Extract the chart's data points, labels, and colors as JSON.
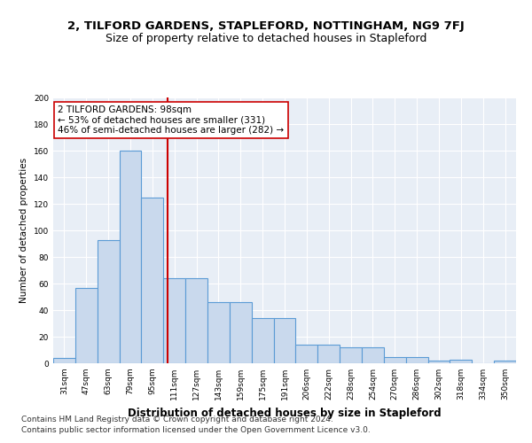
{
  "title": "2, TILFORD GARDENS, STAPLEFORD, NOTTINGHAM, NG9 7FJ",
  "subtitle": "Size of property relative to detached houses in Stapleford",
  "xlabel": "Distribution of detached houses by size in Stapleford",
  "ylabel": "Number of detached properties",
  "categories": [
    "31sqm",
    "47sqm",
    "63sqm",
    "79sqm",
    "95sqm",
    "111sqm",
    "127sqm",
    "143sqm",
    "159sqm",
    "175sqm",
    "191sqm",
    "206sqm",
    "222sqm",
    "238sqm",
    "254sqm",
    "270sqm",
    "286sqm",
    "302sqm",
    "318sqm",
    "334sqm",
    "350sqm"
  ],
  "values": [
    4,
    57,
    93,
    160,
    125,
    64,
    64,
    46,
    46,
    34,
    34,
    14,
    14,
    12,
    12,
    5,
    5,
    2,
    3,
    0,
    2
  ],
  "bar_color": "#c9d9ed",
  "bar_edge_color": "#5b9bd5",
  "bar_edge_width": 0.8,
  "property_line_color": "#cc0000",
  "property_line_x": 4.69,
  "annotation_text": "2 TILFORD GARDENS: 98sqm\n← 53% of detached houses are smaller (331)\n46% of semi-detached houses are larger (282) →",
  "annotation_box_facecolor": "#ffffff",
  "annotation_box_edgecolor": "#cc0000",
  "ylim": [
    0,
    200
  ],
  "yticks": [
    0,
    20,
    40,
    60,
    80,
    100,
    120,
    140,
    160,
    180,
    200
  ],
  "background_color": "#e8eef6",
  "grid_color": "#ffffff",
  "footer_line1": "Contains HM Land Registry data © Crown copyright and database right 2024.",
  "footer_line2": "Contains public sector information licensed under the Open Government Licence v3.0.",
  "title_fontsize": 9.5,
  "subtitle_fontsize": 9,
  "xlabel_fontsize": 8.5,
  "ylabel_fontsize": 7.5,
  "tick_fontsize": 6.5,
  "annotation_fontsize": 7.5,
  "footer_fontsize": 6.5
}
